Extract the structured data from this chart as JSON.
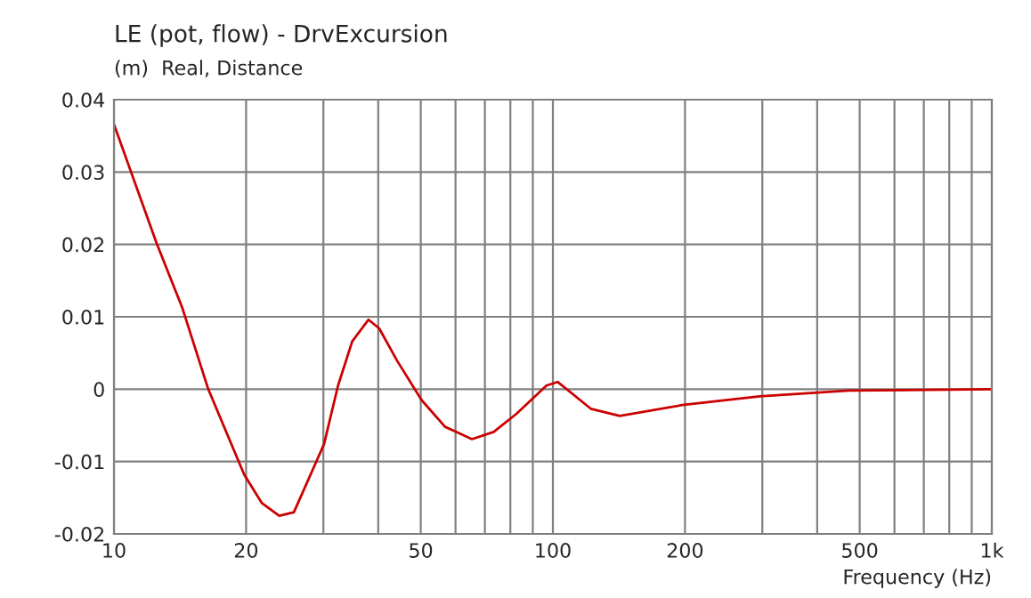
{
  "chart_data": {
    "type": "line",
    "title": "LE (pot, flow) - DrvExcursion",
    "subtitle": "(m)  Real, Distance",
    "xlabel": "Frequency (Hz)",
    "log": "x",
    "grid": true,
    "xlim": [
      10,
      1000
    ],
    "ylim": [
      -0.02,
      0.04
    ],
    "xticks": [
      10,
      20,
      {
        "value": 30,
        "label": null
      },
      {
        "value": 40,
        "label": null
      },
      50,
      {
        "value": 60,
        "label": null
      },
      {
        "value": 70,
        "label": null
      },
      {
        "value": 80,
        "label": null
      },
      {
        "value": 90,
        "label": null
      },
      100,
      200,
      {
        "value": 300,
        "label": null
      },
      {
        "value": 400,
        "label": null
      },
      500,
      {
        "value": 600,
        "label": null
      },
      {
        "value": 700,
        "label": null
      },
      {
        "value": 800,
        "label": null
      },
      {
        "value": 900,
        "label": null
      },
      {
        "value": 1000,
        "label": "1k"
      }
    ],
    "yticks": [
      -0.02,
      -0.01,
      0,
      0.01,
      0.02,
      0.03,
      0.04
    ],
    "series": [
      {
        "color": "#cc0000",
        "x": [
          10,
          12.5,
          14.3,
          16.4,
          19.8,
          21.7,
          23.8,
          25.7,
          30.1,
          32.4,
          34.9,
          38.0,
          40.2,
          44.2,
          50.2,
          56.8,
          65.4,
          73.3,
          82.6,
          96.7,
          102.5,
          122,
          142,
          197,
          296,
          473,
          1000
        ],
        "values": [
          0.0366,
          0.0202,
          0.0113,
          0.0,
          -0.0118,
          -0.0157,
          -0.0175,
          -0.017,
          -0.0076,
          0.0005,
          0.0066,
          0.0096,
          0.0084,
          0.0039,
          -0.0015,
          -0.0052,
          -0.0069,
          -0.0059,
          -0.0034,
          0.0005,
          0.001,
          -0.0027,
          -0.0037,
          -0.0022,
          -0.001,
          -0.0002,
          0.0
        ]
      }
    ]
  }
}
